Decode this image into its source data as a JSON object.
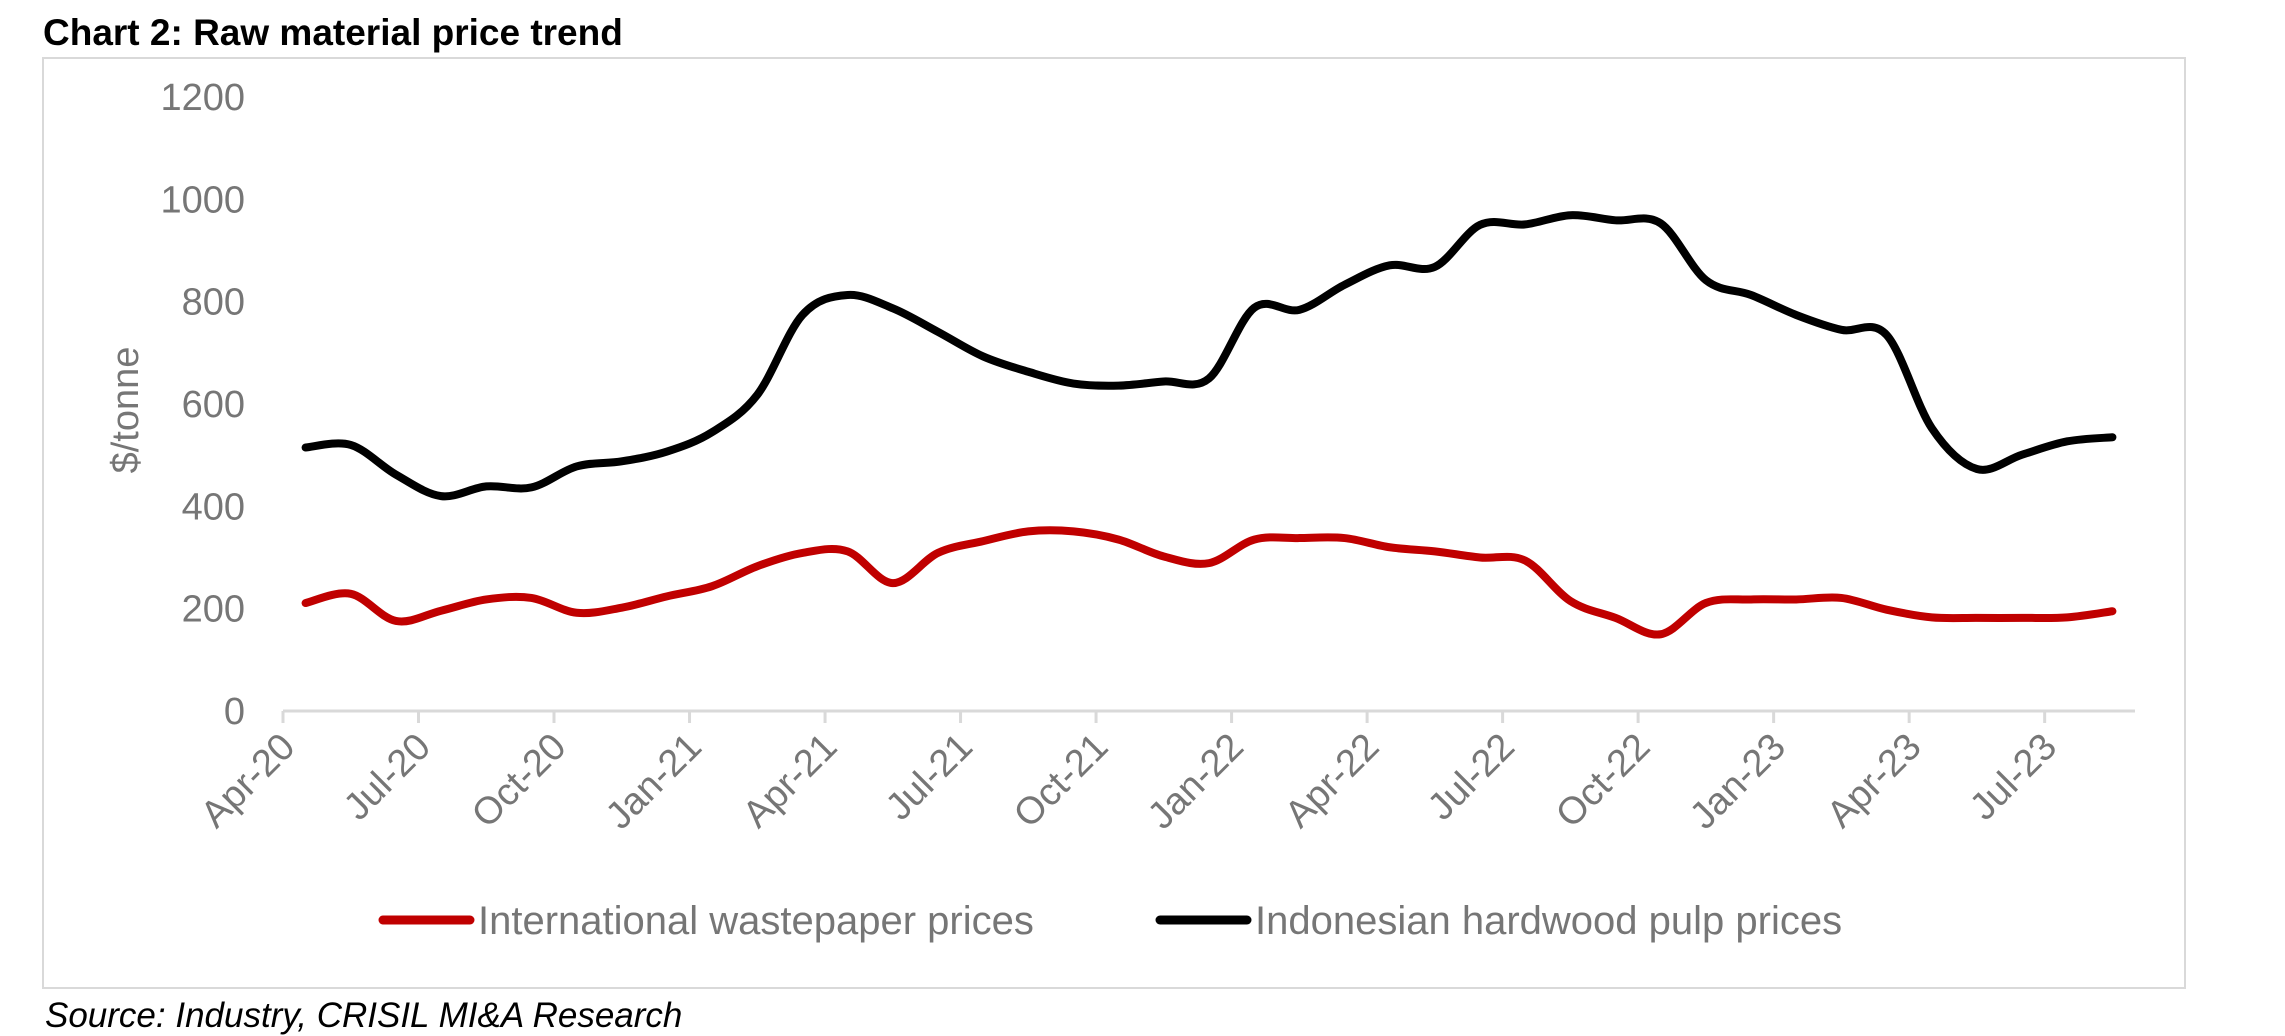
{
  "title": "Chart 2: Raw material price trend",
  "source": "Source: Industry, CRISIL MI&A Research",
  "chart_data": {
    "type": "line",
    "title": "Chart 2: Raw material price trend",
    "xlabel": "",
    "ylabel": "$/tonne",
    "ylim": [
      0,
      1200
    ],
    "yticks": [
      0,
      200,
      400,
      600,
      800,
      1000,
      1200
    ],
    "grid": false,
    "legend_position": "bottom",
    "x": [
      "Apr-20",
      "May-20",
      "Jun-20",
      "Jul-20",
      "Aug-20",
      "Sep-20",
      "Oct-20",
      "Nov-20",
      "Dec-20",
      "Jan-21",
      "Feb-21",
      "Mar-21",
      "Apr-21",
      "May-21",
      "Jun-21",
      "Jul-21",
      "Aug-21",
      "Sep-21",
      "Oct-21",
      "Nov-21",
      "Dec-21",
      "Jan-22",
      "Feb-22",
      "Mar-22",
      "Apr-22",
      "May-22",
      "Jun-22",
      "Jul-22",
      "Aug-22",
      "Sep-22",
      "Oct-22",
      "Nov-22",
      "Dec-22",
      "Jan-23",
      "Feb-23",
      "Mar-23",
      "Apr-23",
      "May-23",
      "Jun-23",
      "Jul-23",
      "Aug-23"
    ],
    "xtick_labels": [
      "Apr-20",
      "Jul-20",
      "Oct-20",
      "Jan-21",
      "Apr-21",
      "Jul-21",
      "Oct-21",
      "Jan-22",
      "Apr-22",
      "Jul-22",
      "Oct-22",
      "Jan-23",
      "Apr-23",
      "Jul-23"
    ],
    "series": [
      {
        "name": "International wastepaper prices",
        "color": "#C00000",
        "values": [
          211,
          229,
          176,
          196,
          218,
          221,
          192,
          202,
          224,
          244,
          283,
          309,
          312,
          250,
          309,
          332,
          351,
          351,
          335,
          302,
          289,
          335,
          338,
          338,
          320,
          312,
          300,
          294,
          215,
          182,
          150,
          211,
          218,
          218,
          221,
          198,
          183,
          182,
          182,
          183,
          195
        ]
      },
      {
        "name": "Indonesian hardwood pulp prices",
        "color": "#000000",
        "values": [
          515,
          520,
          462,
          420,
          439,
          437,
          478,
          488,
          507,
          545,
          618,
          774,
          813,
          787,
          741,
          693,
          663,
          640,
          636,
          644,
          650,
          788,
          784,
          833,
          871,
          868,
          950,
          951,
          969,
          959,
          953,
          842,
          813,
          774,
          745,
          735,
          553,
          473,
          501,
          527,
          535
        ]
      }
    ]
  }
}
